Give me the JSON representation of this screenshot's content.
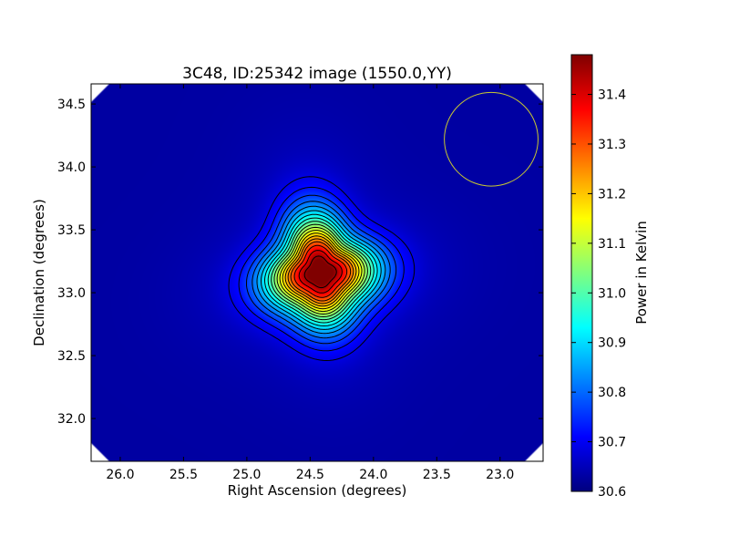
{
  "chart_data": {
    "type": "heatmap",
    "title": "3C48, ID:25342 image (1550.0,YY)",
    "xlabel": "Right Ascension (degrees)",
    "ylabel": "Declination (degrees)",
    "xlim": [
      26.23,
      22.66
    ],
    "ylim": [
      31.66,
      34.66
    ],
    "x_ticks": [
      26.0,
      25.5,
      25.0,
      24.5,
      24.0,
      23.5,
      23.0
    ],
    "x_tick_labels": [
      "26.0",
      "25.5",
      "25.0",
      "24.5",
      "24.0",
      "23.5",
      "23.0"
    ],
    "y_ticks": [
      32.0,
      32.5,
      33.0,
      33.5,
      34.0,
      34.5
    ],
    "y_tick_labels": [
      "32.0",
      "32.5",
      "33.0",
      "33.5",
      "34.0",
      "34.5"
    ],
    "colorbar": {
      "label": "Power in Kelvin",
      "range": [
        30.6,
        31.48
      ],
      "ticks": [
        30.6,
        30.7,
        30.8,
        30.9,
        31.0,
        31.1,
        31.2,
        31.3,
        31.4
      ],
      "tick_labels": [
        "30.6",
        "30.7",
        "30.8",
        "30.9",
        "31.0",
        "31.1",
        "31.2",
        "31.3",
        "31.4"
      ],
      "colormap": "jet"
    },
    "source_peak": {
      "ra": 24.42,
      "dec": 33.16,
      "value": 31.48
    },
    "background_value": 30.63,
    "contour_levels": [
      30.685,
      30.72,
      30.76,
      30.8,
      30.84,
      30.88,
      30.92,
      30.96,
      31.0,
      31.04,
      31.08,
      31.12,
      31.16,
      31.2,
      31.24,
      31.28,
      31.33,
      31.39,
      31.45
    ],
    "beam_circle": {
      "ra": 23.07,
      "dec": 34.22,
      "radius_deg": 0.37,
      "color": "#c8c832"
    },
    "grid": false
  }
}
